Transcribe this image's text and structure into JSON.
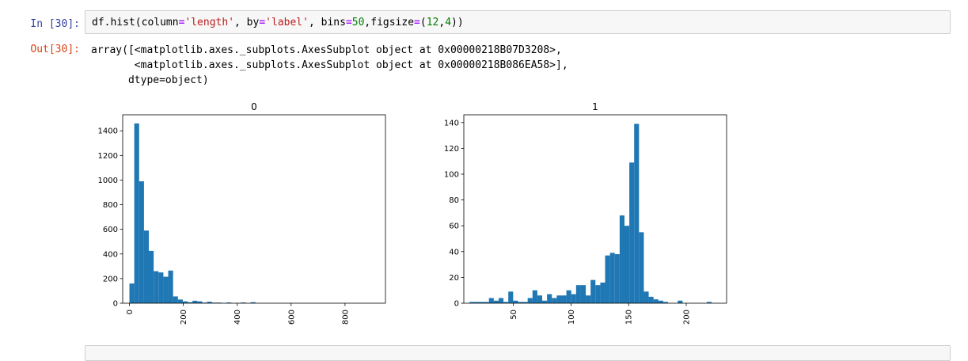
{
  "cell": {
    "in_prompt": "In [30]:",
    "out_prompt": "Out[30]:",
    "code": {
      "t1": "df.hist(column",
      "t2": "=",
      "t3": "'length'",
      "t4": ", by",
      "t5": "=",
      "t6": "'label'",
      "t7": ", bins",
      "t8": "=",
      "t9": "50",
      "t10": ",figsize",
      "t11": "=",
      "t12": "(",
      "t13": "12",
      "t14": ",",
      "t15": "4",
      "t16": "))"
    },
    "output_lines": [
      "array([<matplotlib.axes._subplots.AxesSubplot object at 0x00000218B07D3208>,",
      "       <matplotlib.axes._subplots.AxesSubplot object at 0x00000218B086EA58>],",
      "      dtype=object)"
    ]
  },
  "chart_data": [
    {
      "type": "bar",
      "title": "0",
      "xlabel": "",
      "ylabel": "",
      "color": "#1f77b4",
      "xlim": [
        -25,
        950
      ],
      "ylim": [
        0,
        1530
      ],
      "xticks": [
        0,
        200,
        400,
        600,
        800
      ],
      "yticks": [
        0,
        200,
        400,
        600,
        800,
        1000,
        1200,
        1400
      ],
      "bin_width": 18,
      "bin_start": 0,
      "values": [
        160,
        1460,
        990,
        590,
        425,
        260,
        250,
        215,
        265,
        55,
        30,
        15,
        8,
        20,
        15,
        5,
        12,
        5,
        5,
        0,
        6,
        0,
        0,
        6,
        0,
        8,
        0,
        0,
        0,
        0,
        0,
        0,
        0,
        0,
        0,
        0,
        0,
        0,
        0,
        0,
        0,
        0,
        0,
        0,
        0,
        0,
        0,
        0,
        0,
        0
      ]
    },
    {
      "type": "bar",
      "title": "1",
      "xlabel": "",
      "ylabel": "",
      "color": "#1f77b4",
      "xlim": [
        7,
        235
      ],
      "ylim": [
        0,
        146
      ],
      "xticks": [
        50,
        100,
        150,
        200
      ],
      "yticks": [
        0,
        20,
        40,
        60,
        80,
        100,
        120,
        140
      ],
      "bin_width": 4.2,
      "bin_start": 12,
      "values": [
        1,
        1,
        1,
        1,
        4,
        2,
        4,
        1,
        9,
        2,
        1,
        1,
        4,
        10,
        6,
        2,
        7,
        4,
        6,
        6,
        10,
        7,
        14,
        14,
        6,
        18,
        14,
        16,
        37,
        39,
        38,
        68,
        60,
        109,
        139,
        55,
        9,
        5,
        3,
        2,
        1,
        0,
        0,
        2,
        0,
        0,
        0,
        0,
        0,
        1
      ]
    }
  ]
}
